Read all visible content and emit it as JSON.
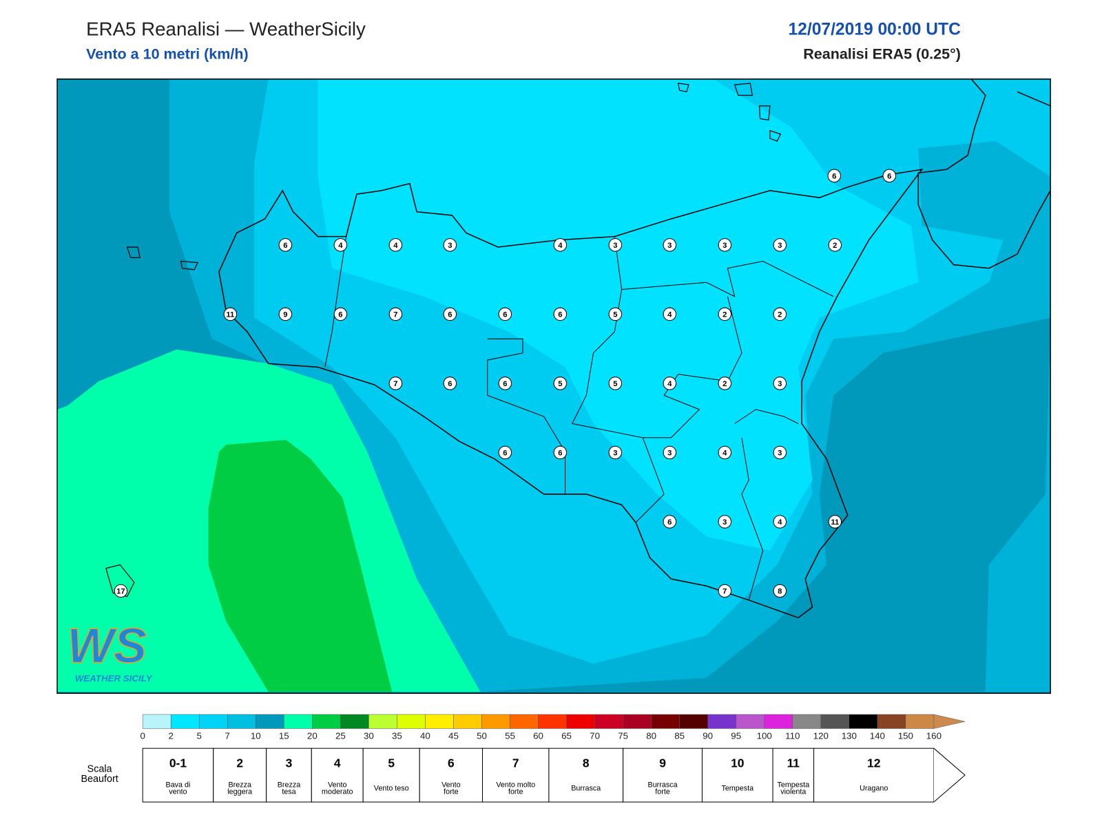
{
  "header": {
    "title": "ERA5 Reanalisi — WeatherSicily",
    "subtitle": "Vento a 10 metri (km/h)",
    "date": "12/07/2019 00:00 UTC",
    "source": "Reanalisi ERA5 (0.25°)"
  },
  "stations": [
    6,
    6,
    6,
    4,
    4,
    3,
    4,
    3,
    3,
    3,
    3,
    2,
    11,
    9,
    6,
    7,
    6,
    6,
    6,
    5,
    4,
    2,
    2,
    7,
    6,
    6,
    5,
    5,
    4,
    2,
    3,
    6,
    6,
    3,
    3,
    4,
    3,
    6,
    3,
    4,
    11,
    7,
    8,
    17
  ],
  "colorbar": {
    "ticks": [
      0,
      2,
      5,
      7,
      10,
      15,
      20,
      25,
      30,
      35,
      40,
      45,
      50,
      55,
      60,
      65,
      70,
      75,
      80,
      85,
      90,
      95,
      100,
      110,
      120,
      130,
      140,
      150,
      160
    ],
    "colors": [
      "#b8f4fa",
      "#00e6ff",
      "#00d3f5",
      "#00bfe0",
      "#0099bb",
      "#00ffaa",
      "#00cc44",
      "#008822",
      "#bbff33",
      "#ddff00",
      "#ffee00",
      "#ffcc00",
      "#ff9900",
      "#ff6600",
      "#ff3300",
      "#ee0000",
      "#cc0022",
      "#aa0022",
      "#770000",
      "#550000",
      "#7733cc",
      "#bb55cc",
      "#dd22dd",
      "#888888",
      "#555555",
      "#000000",
      "#884422",
      "#cc8844"
    ],
    "extend_color": "#cd8a4e"
  },
  "beaufort": {
    "title": [
      "Scala",
      "Beaufort"
    ],
    "levels": [
      {
        "force": "0-1",
        "desc": [
          "Bava di",
          "vento"
        ]
      },
      {
        "force": 2,
        "desc": [
          "Brezza",
          "leggera"
        ]
      },
      {
        "force": 3,
        "desc": [
          "Brezza",
          "tesa"
        ]
      },
      {
        "force": 4,
        "desc": [
          "Vento",
          "moderato"
        ]
      },
      {
        "force": 5,
        "desc": [
          "Vento teso"
        ]
      },
      {
        "force": 6,
        "desc": [
          "Vento",
          "forte"
        ]
      },
      {
        "force": 7,
        "desc": [
          "Vento molto",
          "forte"
        ]
      },
      {
        "force": 8,
        "desc": [
          "Burrasca"
        ]
      },
      {
        "force": 9,
        "desc": [
          "Burrasca",
          "forte"
        ]
      },
      {
        "force": 10,
        "desc": [
          "Tempesta"
        ]
      },
      {
        "force": 11,
        "desc": [
          "Tempesta",
          "violenta"
        ]
      },
      {
        "force": 12,
        "desc": [
          "Uragano"
        ]
      }
    ]
  },
  "logo": {
    "mark": "WS",
    "text": "WEATHER SICILY"
  }
}
